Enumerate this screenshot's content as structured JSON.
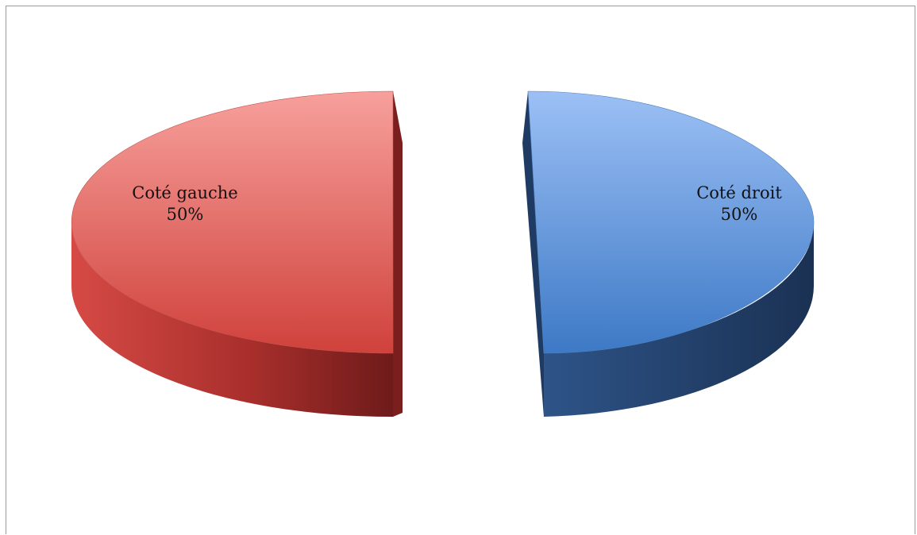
{
  "chart_data": {
    "type": "pie",
    "style": "3d-exploded",
    "slices": [
      {
        "label": "Coté gauche",
        "value": 50,
        "value_label": "50%",
        "color": "#c0504d"
      },
      {
        "label": "Coté droit",
        "value": 50,
        "value_label": "50%",
        "color": "#4f81bd"
      }
    ],
    "legend": "none",
    "title": ""
  }
}
